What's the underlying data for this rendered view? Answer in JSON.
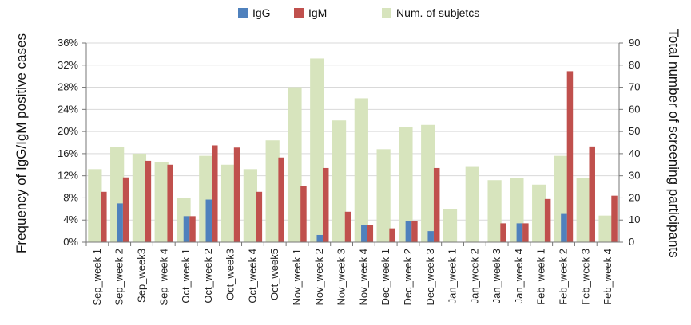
{
  "chart_data": {
    "type": "bar",
    "title": "",
    "ylabel_left": "Frequency of IgG/IgM positive cases",
    "ylabel_right": "Total number of screening participants",
    "ylim_left": [
      0,
      36
    ],
    "ylim_right": [
      0,
      90
    ],
    "left_ticks": [
      "0%",
      "4%",
      "8%",
      "12%",
      "16%",
      "20%",
      "24%",
      "28%",
      "32%",
      "36%"
    ],
    "right_ticks": [
      "0",
      "10",
      "20",
      "30",
      "40",
      "50",
      "60",
      "70",
      "80",
      "90"
    ],
    "legend_position": "top",
    "grid": true,
    "categories": [
      "Sep_week 1",
      "Sep_week 2",
      "Sep_week3",
      "Sep_week 4",
      "Oct_week 1",
      "Oct_week 2",
      "Oct_week3",
      "Oct_week 4",
      "Oct_week5",
      "Nov_week 1",
      "Nov_week 2",
      "Nov_week 3",
      "Nov_week 4",
      "Dec_week 1",
      "Dec_week 2",
      "Dec_week 3",
      "Jan_week 1",
      "Jan_week 2",
      "Jan_week 3",
      "Jan_week 4",
      "Feb_week 1",
      "Feb_week 2",
      "Feb_week 3",
      "Feb_week 4"
    ],
    "series": [
      {
        "name": "IgG",
        "axis": "left",
        "color": "#4f81bd",
        "values": [
          0,
          7.0,
          0,
          0,
          4.7,
          7.7,
          0,
          0,
          0,
          0,
          1.3,
          0,
          3.1,
          0,
          3.8,
          2.0,
          0,
          0,
          0,
          3.4,
          0,
          5.1,
          0,
          0
        ]
      },
      {
        "name": "IgM",
        "axis": "left",
        "color": "#c0504d",
        "values": [
          9.1,
          11.7,
          14.7,
          14.0,
          4.7,
          17.5,
          17.1,
          9.1,
          15.3,
          10.1,
          13.4,
          5.5,
          3.1,
          2.5,
          3.8,
          13.4,
          0,
          0,
          3.4,
          3.4,
          7.8,
          30.9,
          17.3,
          8.4
        ]
      },
      {
        "name": "Num. of subjetcs",
        "axis": "right",
        "color": "#d7e4bd",
        "values": [
          33,
          43,
          40,
          36,
          20,
          39,
          35,
          33,
          46,
          70,
          83,
          55,
          65,
          42,
          52,
          53,
          15,
          34,
          28,
          29,
          26,
          39,
          29,
          12
        ]
      }
    ]
  }
}
